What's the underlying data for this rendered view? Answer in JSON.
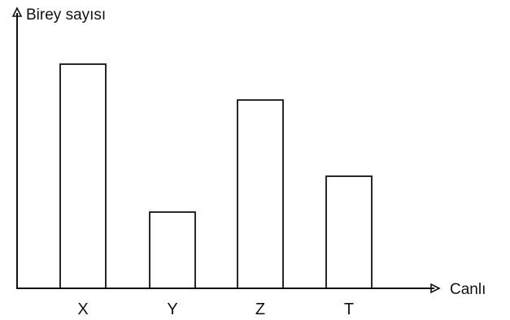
{
  "chart_data": {
    "type": "bar",
    "categories": [
      "X",
      "Y",
      "Z",
      "T"
    ],
    "values": [
      100,
      34,
      84,
      50
    ],
    "ylabel": "Birey sayısı",
    "xlabel": "Canlı",
    "ylim": [
      0,
      100
    ],
    "y_ticks_shown": false,
    "grid": false,
    "legend": "none",
    "bar_fill": "#ffffff",
    "bar_stroke": "#111111",
    "axis_color": "#111111"
  }
}
